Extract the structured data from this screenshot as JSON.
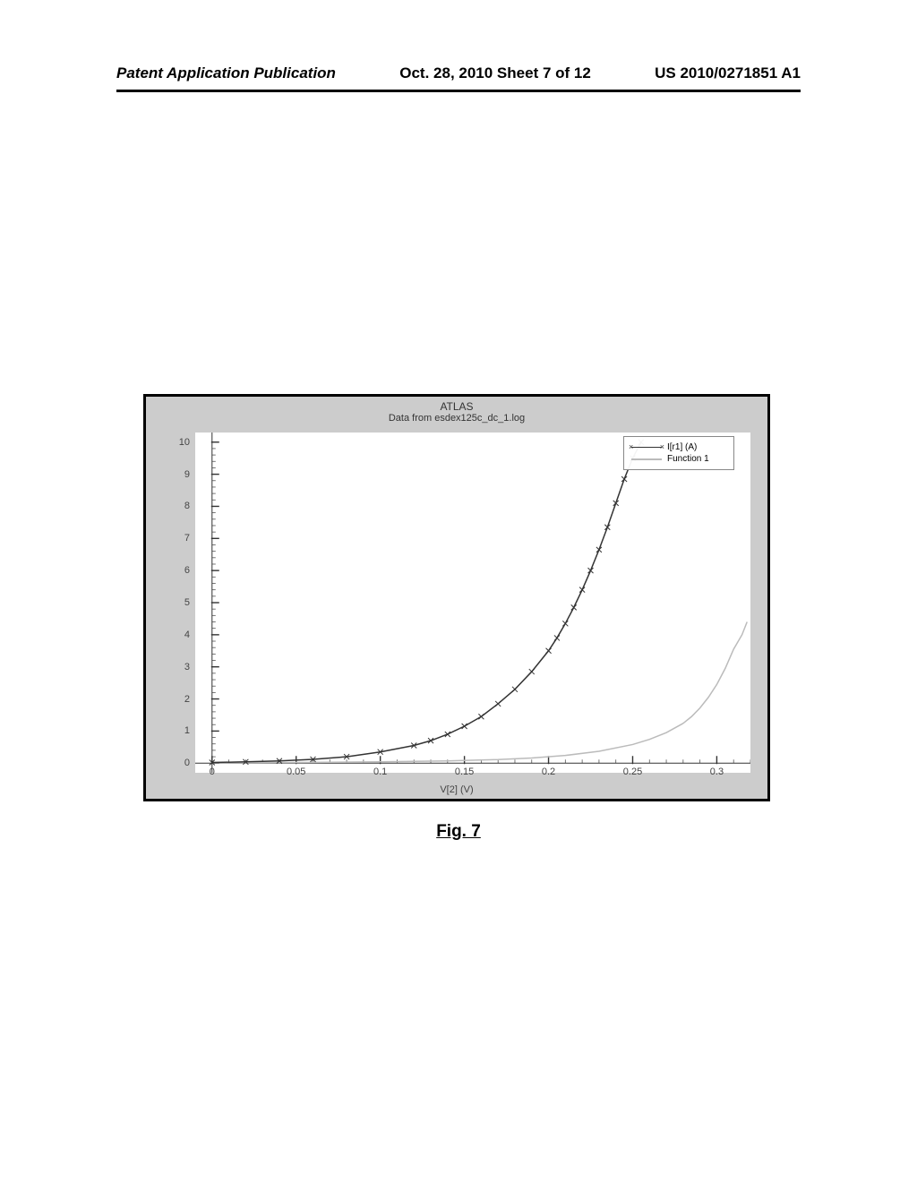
{
  "header": {
    "left": "Patent Application Publication",
    "center": "Oct. 28, 2010  Sheet 7 of 12",
    "right": "US 2010/0271851 A1"
  },
  "chart": {
    "type": "line",
    "outer_border_color": "#000000",
    "outer_background": "#cccccc",
    "plot_background": "#ffffff",
    "title": "ATLAS",
    "subtitle": "Data from esdex125c_dc_1.log",
    "xlabel": "V[2] (V)",
    "x_ticks": [
      0,
      0.05,
      0.1,
      0.15,
      0.2,
      0.25,
      0.3
    ],
    "xlim": [
      -0.01,
      0.32
    ],
    "y_ticks": [
      0,
      1,
      2,
      3,
      4,
      5,
      6,
      7,
      8,
      9,
      10
    ],
    "ylim": [
      -0.3,
      10.3
    ],
    "minor_ticks_per_major": 5,
    "title_fontsize": 12,
    "tick_fontsize": 11,
    "legend": {
      "position": "top-right-inside",
      "items": [
        {
          "label": "I[r1] (A)",
          "color": "#333333",
          "marker": "x",
          "line_width": 1.5
        },
        {
          "label": "Function 1",
          "color": "#bbbbbb",
          "marker": null,
          "line_width": 1.5
        }
      ]
    },
    "series1": {
      "name": "I[r1] (A)",
      "color": "#333333",
      "line_width": 1.5,
      "marker": "x",
      "x": [
        0,
        0.02,
        0.04,
        0.06,
        0.08,
        0.1,
        0.12,
        0.13,
        0.14,
        0.15,
        0.16,
        0.17,
        0.18,
        0.19,
        0.2,
        0.205,
        0.21,
        0.215,
        0.22,
        0.225,
        0.23,
        0.235,
        0.24,
        0.245,
        0.25,
        0.255
      ],
      "y": [
        0.02,
        0.04,
        0.07,
        0.12,
        0.2,
        0.35,
        0.55,
        0.7,
        0.9,
        1.15,
        1.45,
        1.85,
        2.3,
        2.85,
        3.5,
        3.9,
        4.35,
        4.85,
        5.4,
        6.0,
        6.65,
        7.35,
        8.1,
        8.85,
        9.5,
        10.0
      ]
    },
    "series2": {
      "name": "Function 1",
      "color": "#bbbbbb",
      "line_width": 1.5,
      "marker": null,
      "x": [
        0,
        0.05,
        0.1,
        0.14,
        0.17,
        0.19,
        0.21,
        0.23,
        0.25,
        0.26,
        0.27,
        0.28,
        0.285,
        0.29,
        0.295,
        0.3,
        0.305,
        0.31,
        0.315,
        0.318
      ],
      "y": [
        0.01,
        0.02,
        0.04,
        0.07,
        0.11,
        0.16,
        0.24,
        0.37,
        0.58,
        0.74,
        0.95,
        1.24,
        1.45,
        1.72,
        2.05,
        2.45,
        2.95,
        3.55,
        4.0,
        4.4
      ]
    }
  },
  "figure_caption": "Fig. 7"
}
